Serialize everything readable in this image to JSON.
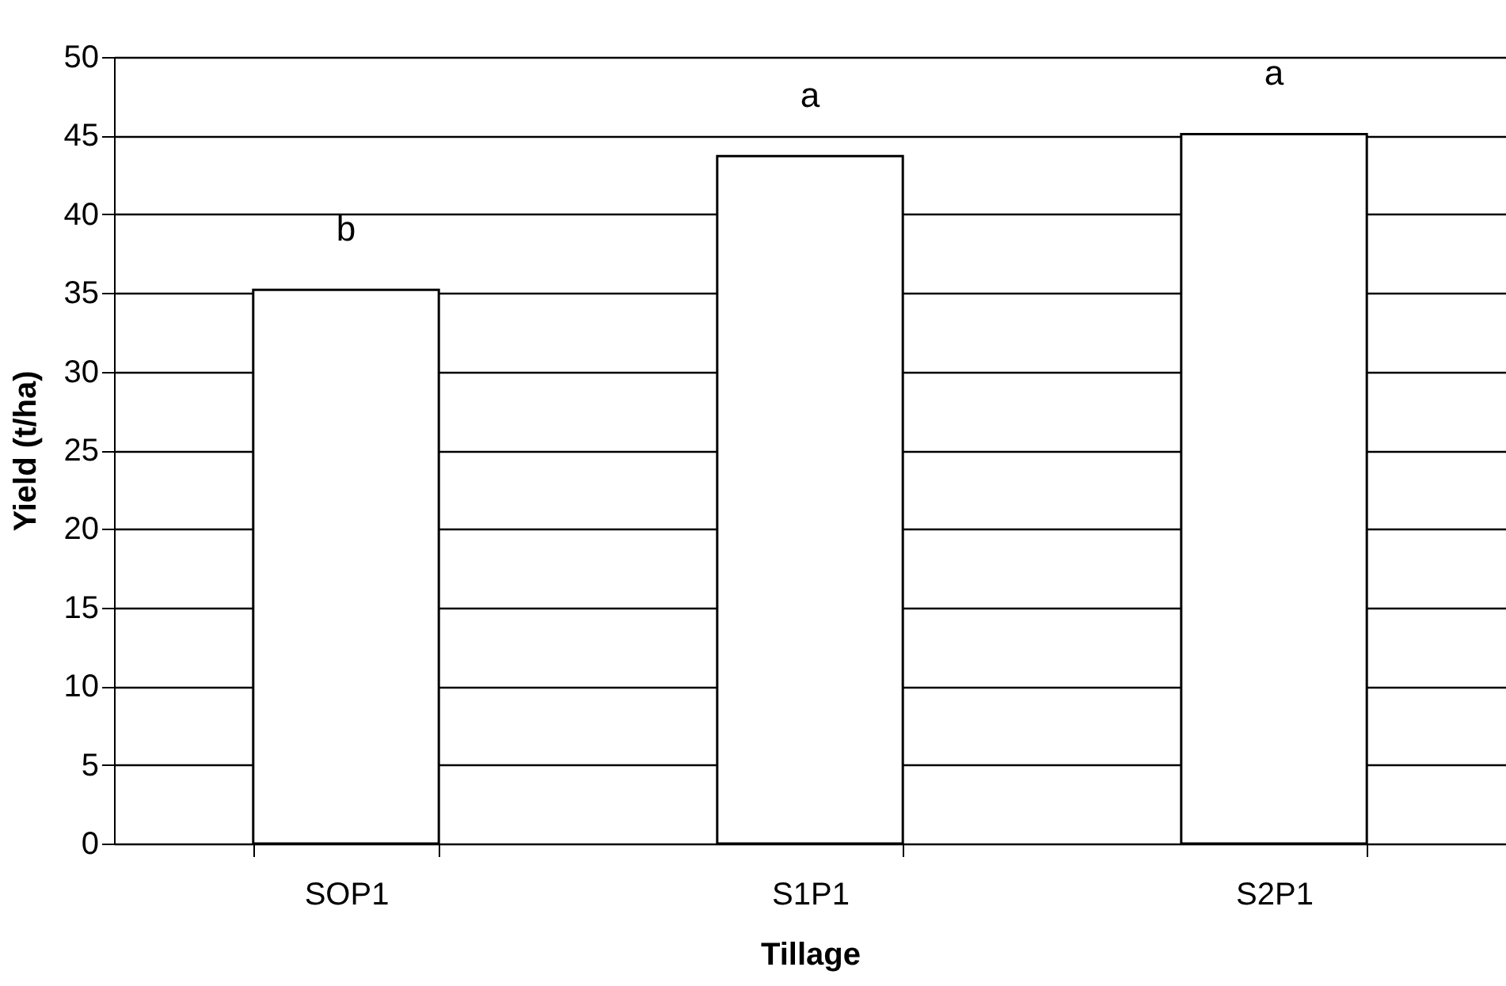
{
  "chart_data": {
    "type": "bar",
    "xlabel": "Tillage",
    "ylabel": "Yield (t/ha)",
    "categories": [
      "SOP1",
      "S1P1",
      "S2P1"
    ],
    "values": [
      35.2,
      43.7,
      45.1
    ],
    "color": "#ffffff",
    "ylim": [
      0,
      50
    ],
    "yticks": [
      0,
      5,
      10,
      15,
      20,
      25,
      30,
      35,
      40,
      45,
      50
    ],
    "grid": "y",
    "annotations": [
      "b",
      "a",
      "a"
    ]
  }
}
